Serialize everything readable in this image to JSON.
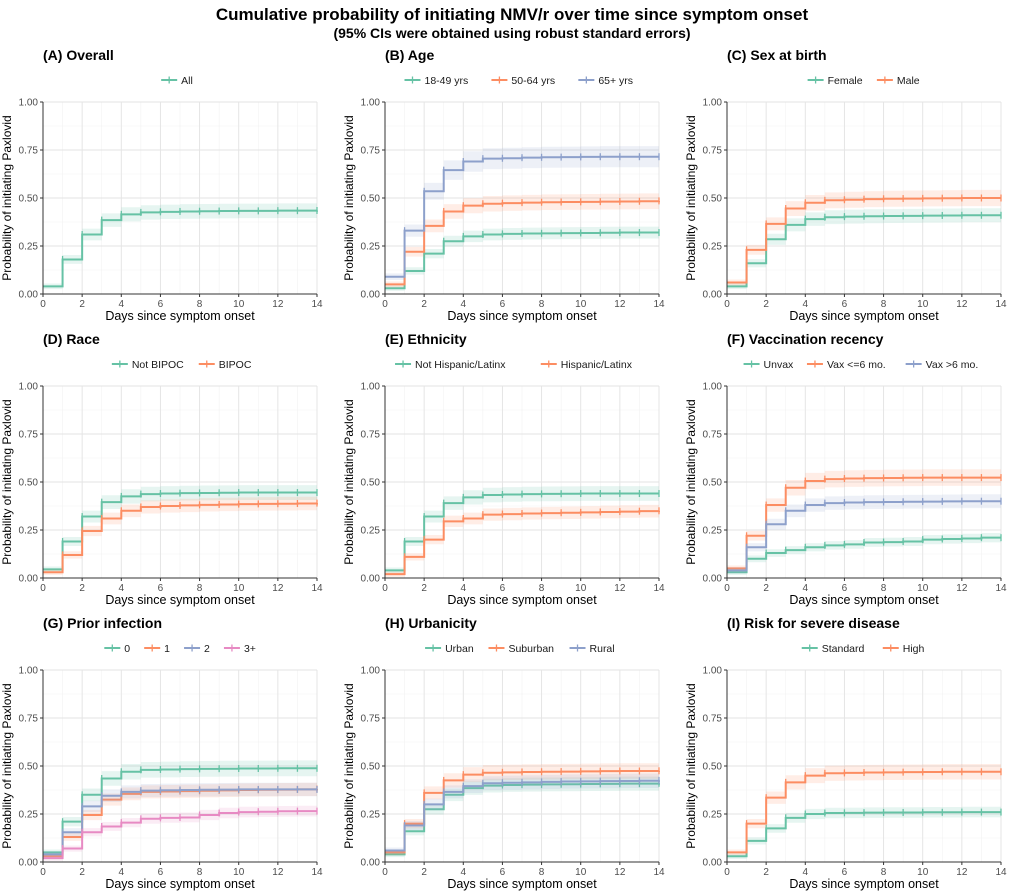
{
  "figure": {
    "title": "Cumulative probability of initiating NMV/r over time since symptom onset",
    "subtitle": "(95% CIs were obtained using robust standard errors)"
  },
  "chart_data": [
    {
      "type": "line",
      "step": true,
      "title": "(A) Overall",
      "xlabel": "Days since symptom onset",
      "ylabel": "Probability of initiating Paxlovid",
      "xlim": [
        0,
        14
      ],
      "ylim": [
        0,
        1
      ],
      "xticks": [
        "0",
        "2",
        "4",
        "6",
        "8",
        "10",
        "12",
        "14"
      ],
      "yticks": [
        "0.00",
        "0.25",
        "0.50",
        "0.75",
        "1.00"
      ],
      "grid": true,
      "legend_position": "top",
      "ci_bands": true,
      "x": [
        0,
        1,
        2,
        3,
        4,
        5,
        6,
        7,
        8,
        9,
        10,
        11,
        12,
        13,
        14
      ],
      "series": [
        {
          "name": "All",
          "color": "#66c2a5",
          "values": [
            0.04,
            0.18,
            0.31,
            0.385,
            0.415,
            0.425,
            0.428,
            0.43,
            0.431,
            0.432,
            0.433,
            0.433,
            0.434,
            0.434,
            0.435
          ]
        }
      ]
    },
    {
      "type": "line",
      "step": true,
      "title": "(B) Age",
      "xlabel": "Days since symptom onset",
      "ylabel": "Probability of initiating Paxlovid",
      "xlim": [
        0,
        14
      ],
      "ylim": [
        0,
        1
      ],
      "xticks": [
        "0",
        "2",
        "4",
        "6",
        "8",
        "10",
        "12",
        "14"
      ],
      "yticks": [
        "0.00",
        "0.25",
        "0.50",
        "0.75",
        "1.00"
      ],
      "grid": true,
      "legend_position": "top",
      "ci_bands": true,
      "x": [
        0,
        1,
        2,
        3,
        4,
        5,
        6,
        7,
        8,
        9,
        10,
        11,
        12,
        13,
        14
      ],
      "series": [
        {
          "name": "18-49 yrs",
          "color": "#66c2a5",
          "values": [
            0.03,
            0.12,
            0.21,
            0.275,
            0.3,
            0.31,
            0.313,
            0.315,
            0.316,
            0.317,
            0.318,
            0.319,
            0.32,
            0.32,
            0.32
          ]
        },
        {
          "name": "50-64 yrs",
          "color": "#fc8d62",
          "values": [
            0.05,
            0.22,
            0.355,
            0.43,
            0.46,
            0.47,
            0.473,
            0.476,
            0.478,
            0.479,
            0.48,
            0.481,
            0.482,
            0.483,
            0.485
          ]
        },
        {
          "name": "65+ yrs",
          "color": "#8da0cb",
          "values": [
            0.09,
            0.33,
            0.535,
            0.645,
            0.69,
            0.705,
            0.707,
            0.71,
            0.712,
            0.713,
            0.714,
            0.715,
            0.715,
            0.715,
            0.715
          ]
        }
      ]
    },
    {
      "type": "line",
      "step": true,
      "title": "(C) Sex at birth",
      "xlabel": "Days since symptom onset",
      "ylabel": "Probability of initiating Paxlovid",
      "xlim": [
        0,
        14
      ],
      "ylim": [
        0,
        1
      ],
      "xticks": [
        "0",
        "2",
        "4",
        "6",
        "8",
        "10",
        "12",
        "14"
      ],
      "yticks": [
        "0.00",
        "0.25",
        "0.50",
        "0.75",
        "1.00"
      ],
      "grid": true,
      "legend_position": "top",
      "ci_bands": true,
      "x": [
        0,
        1,
        2,
        3,
        4,
        5,
        6,
        7,
        8,
        9,
        10,
        11,
        12,
        13,
        14
      ],
      "series": [
        {
          "name": "Female",
          "color": "#66c2a5",
          "values": [
            0.04,
            0.16,
            0.285,
            0.36,
            0.39,
            0.4,
            0.403,
            0.405,
            0.406,
            0.407,
            0.408,
            0.409,
            0.41,
            0.41,
            0.41
          ]
        },
        {
          "name": "Male",
          "color": "#fc8d62",
          "values": [
            0.06,
            0.23,
            0.365,
            0.445,
            0.475,
            0.488,
            0.491,
            0.494,
            0.496,
            0.497,
            0.498,
            0.499,
            0.5,
            0.5,
            0.5
          ]
        }
      ]
    },
    {
      "type": "line",
      "step": true,
      "title": "(D) Race",
      "xlabel": "Days since symptom onset",
      "ylabel": "Probability of initiating Paxlovid",
      "xlim": [
        0,
        14
      ],
      "ylim": [
        0,
        1
      ],
      "xticks": [
        "0",
        "2",
        "4",
        "6",
        "8",
        "10",
        "12",
        "14"
      ],
      "yticks": [
        "0.00",
        "0.25",
        "0.50",
        "0.75",
        "1.00"
      ],
      "grid": true,
      "legend_position": "top",
      "ci_bands": true,
      "x": [
        0,
        1,
        2,
        3,
        4,
        5,
        6,
        7,
        8,
        9,
        10,
        11,
        12,
        13,
        14
      ],
      "series": [
        {
          "name": "Not BIPOC",
          "color": "#66c2a5",
          "values": [
            0.045,
            0.19,
            0.32,
            0.395,
            0.425,
            0.437,
            0.44,
            0.442,
            0.443,
            0.444,
            0.445,
            0.445,
            0.445,
            0.445,
            0.445
          ]
        },
        {
          "name": "BIPOC",
          "color": "#fc8d62",
          "values": [
            0.03,
            0.12,
            0.245,
            0.31,
            0.35,
            0.37,
            0.375,
            0.378,
            0.381,
            0.383,
            0.385,
            0.386,
            0.387,
            0.388,
            0.39
          ]
        }
      ]
    },
    {
      "type": "line",
      "step": true,
      "title": "(E) Ethnicity",
      "xlabel": "Days since symptom onset",
      "ylabel": "Probability of initiating Paxlovid",
      "xlim": [
        0,
        14
      ],
      "ylim": [
        0,
        1
      ],
      "xticks": [
        "0",
        "2",
        "4",
        "6",
        "8",
        "10",
        "12",
        "14"
      ],
      "yticks": [
        "0.00",
        "0.25",
        "0.50",
        "0.75",
        "1.00"
      ],
      "grid": true,
      "legend_position": "top",
      "ci_bands": true,
      "x": [
        0,
        1,
        2,
        3,
        4,
        5,
        6,
        7,
        8,
        9,
        10,
        11,
        12,
        13,
        14
      ],
      "series": [
        {
          "name": "Not Hispanic/Latinx",
          "color": "#66c2a5",
          "values": [
            0.04,
            0.19,
            0.32,
            0.39,
            0.42,
            0.432,
            0.435,
            0.437,
            0.438,
            0.439,
            0.44,
            0.44,
            0.44,
            0.44,
            0.44
          ]
        },
        {
          "name": "Hispanic/Latinx",
          "color": "#fc8d62",
          "values": [
            0.02,
            0.11,
            0.2,
            0.295,
            0.31,
            0.33,
            0.333,
            0.336,
            0.338,
            0.34,
            0.342,
            0.344,
            0.346,
            0.348,
            0.35
          ]
        }
      ]
    },
    {
      "type": "line",
      "step": true,
      "title": "(F) Vaccination recency",
      "xlabel": "Days since symptom onset",
      "ylabel": "Probability of initiating Paxlovid",
      "xlim": [
        0,
        14
      ],
      "ylim": [
        0,
        1
      ],
      "xticks": [
        "0",
        "2",
        "4",
        "6",
        "8",
        "10",
        "12",
        "14"
      ],
      "yticks": [
        "0.00",
        "0.25",
        "0.50",
        "0.75",
        "1.00"
      ],
      "grid": true,
      "legend_position": "top",
      "ci_bands": true,
      "x": [
        0,
        1,
        2,
        3,
        4,
        5,
        6,
        7,
        8,
        9,
        10,
        11,
        12,
        13,
        14
      ],
      "series": [
        {
          "name": "Unvax",
          "color": "#66c2a5",
          "values": [
            0.03,
            0.1,
            0.13,
            0.145,
            0.16,
            0.17,
            0.175,
            0.185,
            0.187,
            0.19,
            0.2,
            0.203,
            0.206,
            0.21,
            0.21
          ]
        },
        {
          "name": "Vax <=6 mo.",
          "color": "#fc8d62",
          "values": [
            0.05,
            0.22,
            0.38,
            0.47,
            0.505,
            0.515,
            0.518,
            0.52,
            0.521,
            0.522,
            0.523,
            0.523,
            0.523,
            0.523,
            0.523
          ]
        },
        {
          "name": "Vax >6 mo.",
          "color": "#8da0cb",
          "values": [
            0.04,
            0.16,
            0.28,
            0.35,
            0.38,
            0.39,
            0.393,
            0.395,
            0.396,
            0.397,
            0.398,
            0.399,
            0.4,
            0.4,
            0.4
          ]
        }
      ]
    },
    {
      "type": "line",
      "step": true,
      "title": "(G) Prior infection",
      "xlabel": "Days since symptom onset",
      "ylabel": "Probability of initiating Paxlovid",
      "xlim": [
        0,
        14
      ],
      "ylim": [
        0,
        1
      ],
      "xticks": [
        "0",
        "2",
        "4",
        "6",
        "8",
        "10",
        "12",
        "14"
      ],
      "yticks": [
        "0.00",
        "0.25",
        "0.50",
        "0.75",
        "1.00"
      ],
      "grid": true,
      "legend_position": "top",
      "ci_bands": true,
      "x": [
        0,
        1,
        2,
        3,
        4,
        5,
        6,
        7,
        8,
        9,
        10,
        11,
        12,
        13,
        14
      ],
      "series": [
        {
          "name": "0",
          "color": "#66c2a5",
          "values": [
            0.05,
            0.21,
            0.35,
            0.435,
            0.47,
            0.48,
            0.482,
            0.484,
            0.485,
            0.486,
            0.487,
            0.487,
            0.488,
            0.488,
            0.488
          ]
        },
        {
          "name": "1",
          "color": "#fc8d62",
          "values": [
            0.03,
            0.13,
            0.245,
            0.325,
            0.355,
            0.365,
            0.367,
            0.369,
            0.371,
            0.373,
            0.375,
            0.376,
            0.377,
            0.378,
            0.38
          ]
        },
        {
          "name": "2",
          "color": "#8da0cb",
          "values": [
            0.04,
            0.155,
            0.29,
            0.345,
            0.365,
            0.372,
            0.374,
            0.375,
            0.376,
            0.377,
            0.378,
            0.378,
            0.378,
            0.378,
            0.378
          ]
        },
        {
          "name": "3+",
          "color": "#e78ac3",
          "values": [
            0.02,
            0.07,
            0.155,
            0.185,
            0.205,
            0.225,
            0.23,
            0.232,
            0.245,
            0.255,
            0.26,
            0.262,
            0.264,
            0.265,
            0.265
          ]
        }
      ]
    },
    {
      "type": "line",
      "step": true,
      "title": "(H) Urbanicity",
      "xlabel": "Days since symptom onset",
      "ylabel": "Probability of initiating Paxlovid",
      "xlim": [
        0,
        14
      ],
      "ylim": [
        0,
        1
      ],
      "xticks": [
        "0",
        "2",
        "4",
        "6",
        "8",
        "10",
        "12",
        "14"
      ],
      "yticks": [
        "0.00",
        "0.25",
        "0.50",
        "0.75",
        "1.00"
      ],
      "grid": true,
      "legend_position": "top",
      "ci_bands": true,
      "x": [
        0,
        1,
        2,
        3,
        4,
        5,
        6,
        7,
        8,
        9,
        10,
        11,
        12,
        13,
        14
      ],
      "series": [
        {
          "name": "Urban",
          "color": "#66c2a5",
          "values": [
            0.04,
            0.16,
            0.275,
            0.35,
            0.385,
            0.398,
            0.401,
            0.403,
            0.404,
            0.405,
            0.406,
            0.407,
            0.408,
            0.408,
            0.41
          ]
        },
        {
          "name": "Suburban",
          "color": "#fc8d62",
          "values": [
            0.05,
            0.2,
            0.36,
            0.425,
            0.455,
            0.465,
            0.467,
            0.469,
            0.47,
            0.471,
            0.472,
            0.473,
            0.474,
            0.474,
            0.475
          ]
        },
        {
          "name": "Rural",
          "color": "#8da0cb",
          "values": [
            0.06,
            0.19,
            0.3,
            0.365,
            0.395,
            0.41,
            0.413,
            0.415,
            0.417,
            0.419,
            0.42,
            0.421,
            0.422,
            0.423,
            0.425
          ]
        }
      ]
    },
    {
      "type": "line",
      "step": true,
      "title": "(I) Risk for severe disease",
      "xlabel": "Days since symptom onset",
      "ylabel": "Probability of initiating Paxlovid",
      "xlim": [
        0,
        14
      ],
      "ylim": [
        0,
        1
      ],
      "xticks": [
        "0",
        "2",
        "4",
        "6",
        "8",
        "10",
        "12",
        "14"
      ],
      "yticks": [
        "0.00",
        "0.25",
        "0.50",
        "0.75",
        "1.00"
      ],
      "grid": true,
      "legend_position": "top",
      "ci_bands": true,
      "x": [
        0,
        1,
        2,
        3,
        4,
        5,
        6,
        7,
        8,
        9,
        10,
        11,
        12,
        13,
        14
      ],
      "series": [
        {
          "name": "Standard",
          "color": "#66c2a5",
          "values": [
            0.03,
            0.11,
            0.175,
            0.23,
            0.25,
            0.255,
            0.256,
            0.257,
            0.258,
            0.258,
            0.259,
            0.259,
            0.26,
            0.26,
            0.26
          ]
        },
        {
          "name": "High",
          "color": "#fc8d62",
          "values": [
            0.05,
            0.2,
            0.335,
            0.415,
            0.45,
            0.462,
            0.464,
            0.466,
            0.467,
            0.468,
            0.469,
            0.47,
            0.47,
            0.47,
            0.47
          ]
        }
      ]
    }
  ]
}
